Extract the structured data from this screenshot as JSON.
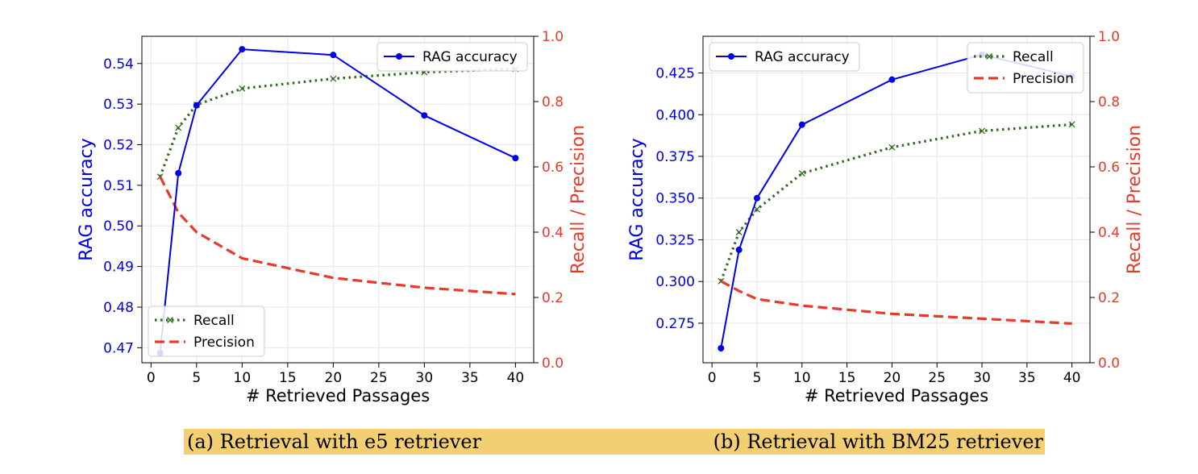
{
  "colors": {
    "rag": "#0000e6",
    "recall": "#2e6b1f",
    "precision": "#e63a2a",
    "caption_bg": "#f2cf72",
    "grid": "#e6e6e6"
  },
  "captions": {
    "a": "(a) Retrieval with e5 retriever",
    "b": "(b) Retrieval with BM25 retriever"
  },
  "chart_data": [
    {
      "type": "line",
      "xlabel": "# Retrieved Passages",
      "ylabel_left": "RAG accuracy",
      "ylabel_right": "Recall / Precision",
      "xlim": [
        -1,
        42
      ],
      "xticks": [
        0,
        5,
        10,
        15,
        20,
        25,
        30,
        35,
        40
      ],
      "ylim_left": [
        0.4663,
        0.5467
      ],
      "yticks_left": [
        0.47,
        0.48,
        0.49,
        0.5,
        0.51,
        0.52,
        0.53,
        0.54
      ],
      "ytick_labels_left": [
        "0.47",
        "0.48",
        "0.49",
        "0.50",
        "0.51",
        "0.52",
        "0.53",
        "0.54"
      ],
      "ylim_right": [
        0.0,
        1.0
      ],
      "yticks_right": [
        0.0,
        0.2,
        0.4,
        0.6,
        0.8,
        1.0
      ],
      "ytick_labels_right": [
        "0.0",
        "0.2",
        "0.4",
        "0.6",
        "0.8",
        "1.0"
      ],
      "grid": true,
      "legend_left": {
        "placement": "upper-right",
        "entries": [
          "RAG accuracy"
        ]
      },
      "legend_right": {
        "placement": "lower-left",
        "entries": [
          "Recall",
          "Precision"
        ]
      },
      "series": [
        {
          "name": "RAG accuracy",
          "axis": "left",
          "style": "solid-dot",
          "x": [
            1,
            3,
            5,
            10,
            20,
            30,
            40
          ],
          "y": [
            0.4687,
            0.513,
            0.5297,
            0.5435,
            0.5421,
            0.5272,
            0.5167
          ]
        },
        {
          "name": "Recall",
          "axis": "right",
          "style": "dotted-x",
          "x": [
            1,
            3,
            5,
            10,
            20,
            30,
            40
          ],
          "y": [
            0.57,
            0.72,
            0.79,
            0.84,
            0.87,
            0.89,
            0.9
          ]
        },
        {
          "name": "Precision",
          "axis": "right",
          "style": "dashed",
          "x": [
            1,
            3,
            5,
            10,
            20,
            30,
            40
          ],
          "y": [
            0.57,
            0.46,
            0.4,
            0.32,
            0.26,
            0.23,
            0.21
          ]
        }
      ]
    },
    {
      "type": "line",
      "xlabel": "# Retrieved Passages",
      "ylabel_left": "RAG accuracy",
      "ylabel_right": "Recall / Precision",
      "xlim": [
        -1,
        42
      ],
      "xticks": [
        0,
        5,
        10,
        15,
        20,
        25,
        30,
        35,
        40
      ],
      "ylim_left": [
        0.2513,
        0.447
      ],
      "yticks_left": [
        0.275,
        0.3,
        0.325,
        0.35,
        0.375,
        0.4,
        0.425
      ],
      "ytick_labels_left": [
        "0.275",
        "0.300",
        "0.325",
        "0.350",
        "0.375",
        "0.400",
        "0.425"
      ],
      "ylim_right": [
        0.0,
        1.0
      ],
      "yticks_right": [
        0.0,
        0.2,
        0.4,
        0.6,
        0.8,
        1.0
      ],
      "ytick_labels_right": [
        "0.0",
        "0.2",
        "0.4",
        "0.6",
        "0.8",
        "1.0"
      ],
      "grid": true,
      "legend_left": {
        "placement": "upper-left",
        "entries": [
          "RAG accuracy"
        ]
      },
      "legend_right": {
        "placement": "upper-right",
        "entries": [
          "Recall",
          "Precision"
        ]
      },
      "series": [
        {
          "name": "RAG accuracy",
          "axis": "left",
          "style": "solid-dot",
          "x": [
            1,
            3,
            5,
            10,
            20,
            30,
            40
          ],
          "y": [
            0.26,
            0.319,
            0.35,
            0.394,
            0.421,
            0.436,
            0.423
          ]
        },
        {
          "name": "Recall",
          "axis": "right",
          "style": "dotted-x",
          "x": [
            1,
            3,
            5,
            10,
            20,
            30,
            40
          ],
          "y": [
            0.25,
            0.4,
            0.47,
            0.58,
            0.66,
            0.71,
            0.73
          ]
        },
        {
          "name": "Precision",
          "axis": "right",
          "style": "dashed",
          "x": [
            1,
            3,
            5,
            10,
            20,
            30,
            40
          ],
          "y": [
            0.25,
            0.22,
            0.195,
            0.175,
            0.15,
            0.135,
            0.12
          ]
        }
      ]
    }
  ]
}
